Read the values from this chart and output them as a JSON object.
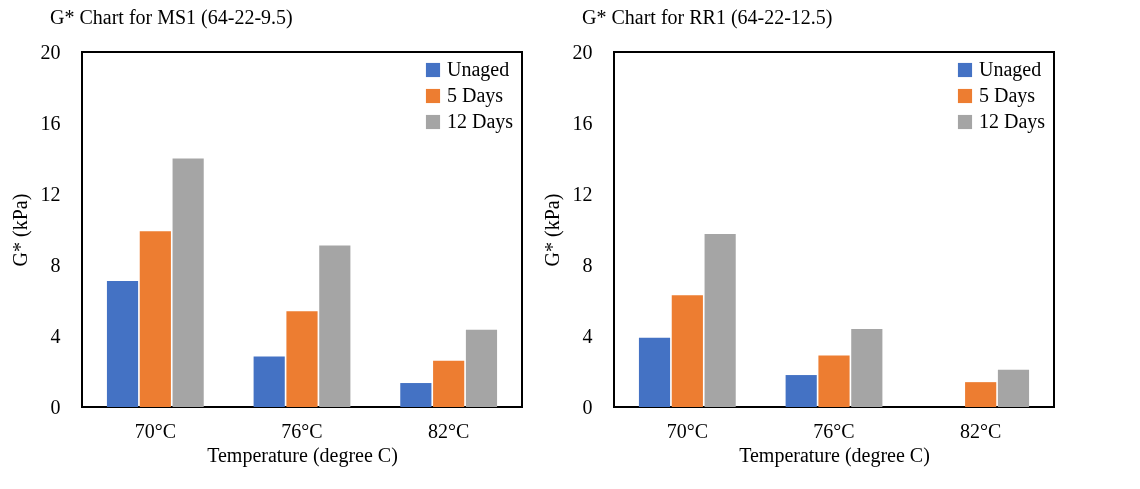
{
  "chart_data": [
    {
      "type": "bar",
      "title": "G* Chart for MS1 (64-22-9.5)",
      "xlabel": "Temperature (degree C)",
      "ylabel": "G* (kPa)",
      "categories": [
        "70°C",
        "76°C",
        "82°C"
      ],
      "series": [
        {
          "name": "Unaged",
          "color": "#4472c4",
          "values": [
            7.1,
            2.85,
            1.35
          ]
        },
        {
          "name": "5 Days",
          "color": "#ed7d31",
          "values": [
            9.9,
            5.4,
            2.6
          ]
        },
        {
          "name": "12 Days",
          "color": "#a5a5a5",
          "values": [
            14.0,
            9.1,
            4.35
          ]
        }
      ],
      "ylim": [
        0,
        20
      ],
      "yticks": [
        0,
        4,
        8,
        12,
        16,
        20
      ],
      "grid": false,
      "legend": "top right"
    },
    {
      "type": "bar",
      "title": "G* Chart for RR1 (64-22-12.5)",
      "xlabel": "Temperature (degree C)",
      "ylabel": "G* (kPa)",
      "categories": [
        "70°C",
        "76°C",
        "82°C"
      ],
      "series": [
        {
          "name": "Unaged",
          "color": "#4472c4",
          "values": [
            3.9,
            1.8,
            null
          ]
        },
        {
          "name": "5 Days",
          "color": "#ed7d31",
          "values": [
            6.3,
            2.9,
            1.4
          ]
        },
        {
          "name": "12 Days",
          "color": "#a5a5a5",
          "values": [
            9.75,
            4.4,
            2.1
          ]
        }
      ],
      "ylim": [
        0,
        20
      ],
      "yticks": [
        0,
        4,
        8,
        12,
        16,
        20
      ],
      "grid": false,
      "legend": "top right"
    }
  ]
}
